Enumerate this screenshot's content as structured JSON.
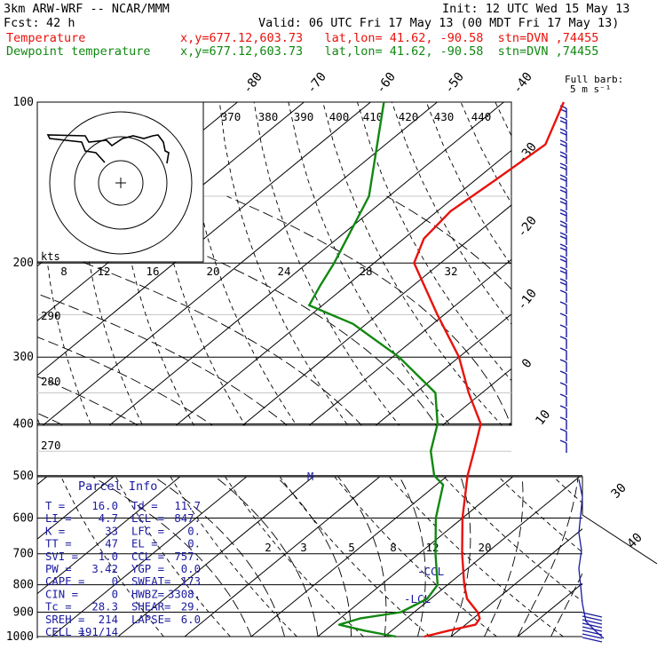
{
  "header": {
    "model": "3km ARW-WRF -- NCAR/MMM",
    "init": "Init: 12 UTC Wed 15 May 13",
    "fcst_label": "Fcst:",
    "fcst_value": "42 h",
    "valid": "Valid: 06 UTC Fri 17 May 13 (00 MDT Fri 17 May 13)",
    "temperature_label": "Temperature",
    "dewpoint_label": "Dewpoint temperature",
    "location": "x,y=677.12,603.73   lat,lon= 41.62, -90.58  stn=DVN ,74455",
    "colors": {
      "temperature": "#e8120c",
      "dewpoint": "#118811",
      "wind": "#1a1aa0"
    }
  },
  "chart_data": {
    "type": "line",
    "title": "",
    "y_axis": {
      "scale": "log-pressure",
      "unit": "hPa",
      "ylim": [
        1000,
        100
      ],
      "ticks": [
        "100",
        "200",
        "300",
        "400",
        "500",
        "600",
        "700",
        "800",
        "900",
        "1000"
      ]
    },
    "isotherm_labels": [
      "-80",
      "-70",
      "-60",
      "-50",
      "-40",
      "-30",
      "-20",
      "-10",
      "0",
      "10"
    ],
    "series": [
      {
        "name": "Temperature",
        "points": [
          {
            "p": 1000,
            "t": 16.0
          },
          {
            "p": 975,
            "t": 18.5
          },
          {
            "p": 950,
            "t": 21.5
          },
          {
            "p": 925,
            "t": 21.0
          },
          {
            "p": 900,
            "t": 19.5
          },
          {
            "p": 850,
            "t": 15.5
          },
          {
            "p": 800,
            "t": 12.5
          },
          {
            "p": 700,
            "t": 6.5
          },
          {
            "p": 600,
            "t": 0.0
          },
          {
            "p": 500,
            "t": -7.0
          },
          {
            "p": 450,
            "t": -10.5
          },
          {
            "p": 400,
            "t": -14.5
          },
          {
            "p": 350,
            "t": -22.0
          },
          {
            "p": 300,
            "t": -30.0
          },
          {
            "p": 250,
            "t": -41.0
          },
          {
            "p": 200,
            "t": -54.0
          },
          {
            "p": 180,
            "t": -57.0
          },
          {
            "p": 160,
            "t": -58.0
          },
          {
            "p": 140,
            "t": -57.0
          },
          {
            "p": 120,
            "t": -56.0
          },
          {
            "p": 100,
            "t": -61.0
          }
        ]
      },
      {
        "name": "Dewpoint temperature",
        "points": [
          {
            "p": 1000,
            "t": 11.7
          },
          {
            "p": 975,
            "t": 6.0
          },
          {
            "p": 950,
            "t": 1.0
          },
          {
            "p": 925,
            "t": 3.0
          },
          {
            "p": 900,
            "t": 8.0
          },
          {
            "p": 850,
            "t": 9.5
          },
          {
            "p": 800,
            "t": 8.5
          },
          {
            "p": 700,
            "t": 2.5
          },
          {
            "p": 600,
            "t": -4.0
          },
          {
            "p": 520,
            "t": -9.0
          },
          {
            "p": 500,
            "t": -12.0
          },
          {
            "p": 450,
            "t": -17.0
          },
          {
            "p": 400,
            "t": -21.0
          },
          {
            "p": 350,
            "t": -27.0
          },
          {
            "p": 300,
            "t": -39.0
          },
          {
            "p": 260,
            "t": -52.0
          },
          {
            "p": 240,
            "t": -62.0
          },
          {
            "p": 220,
            "t": -64.0
          },
          {
            "p": 200,
            "t": -66.0
          },
          {
            "p": 150,
            "t": -73.0
          },
          {
            "p": 100,
            "t": -88.0
          }
        ]
      }
    ],
    "mixing_ratio_labels": [
      "2",
      "3",
      "5",
      "8",
      "12",
      "20"
    ],
    "lcl_labels": [
      "-CCL",
      "-LCL"
    ],
    "m_label": "M",
    "theta_labels": [
      "370",
      "380",
      "390",
      "400",
      "410",
      "420",
      "430",
      "440"
    ],
    "theta_e_labels": [
      "290",
      "280",
      "270"
    ],
    "hodograph": {
      "axis_label": "kts",
      "speed_ticks": [
        "8",
        "12",
        "16",
        "20",
        "24",
        "28",
        "32"
      ]
    },
    "wind_profile_labels": [
      "Full barb:",
      "5 m s⁻¹"
    ],
    "wind_speed_axis": [
      "30",
      "40"
    ]
  },
  "parcel_info": {
    "title": "Parcel Info",
    "rows": [
      [
        "T   =",
        "16.0",
        "Td  =",
        "11.7"
      ],
      [
        "LI  =",
        "4.7",
        "LCL =",
        "847."
      ],
      [
        "K   =",
        "33",
        "LFC =",
        "0."
      ],
      [
        "TT  =",
        "47",
        "EL  =",
        "0."
      ],
      [
        "SVI =",
        "1.0",
        "CCL =",
        "757."
      ],
      [
        "PW  =",
        "3.42",
        "YGP =",
        "0.0"
      ],
      [
        "CAPE =",
        "0",
        "SWEAT=",
        "173"
      ],
      [
        "CIN  =",
        "0",
        "HWBZ=",
        "3308."
      ],
      [
        "Tc  =",
        "28.3",
        "SHEAR=",
        "29."
      ],
      [
        "SREH =",
        "214",
        "LAPSE=",
        "6.0"
      ],
      [
        "CELL =",
        "191/14",
        "",
        ""
      ]
    ]
  }
}
